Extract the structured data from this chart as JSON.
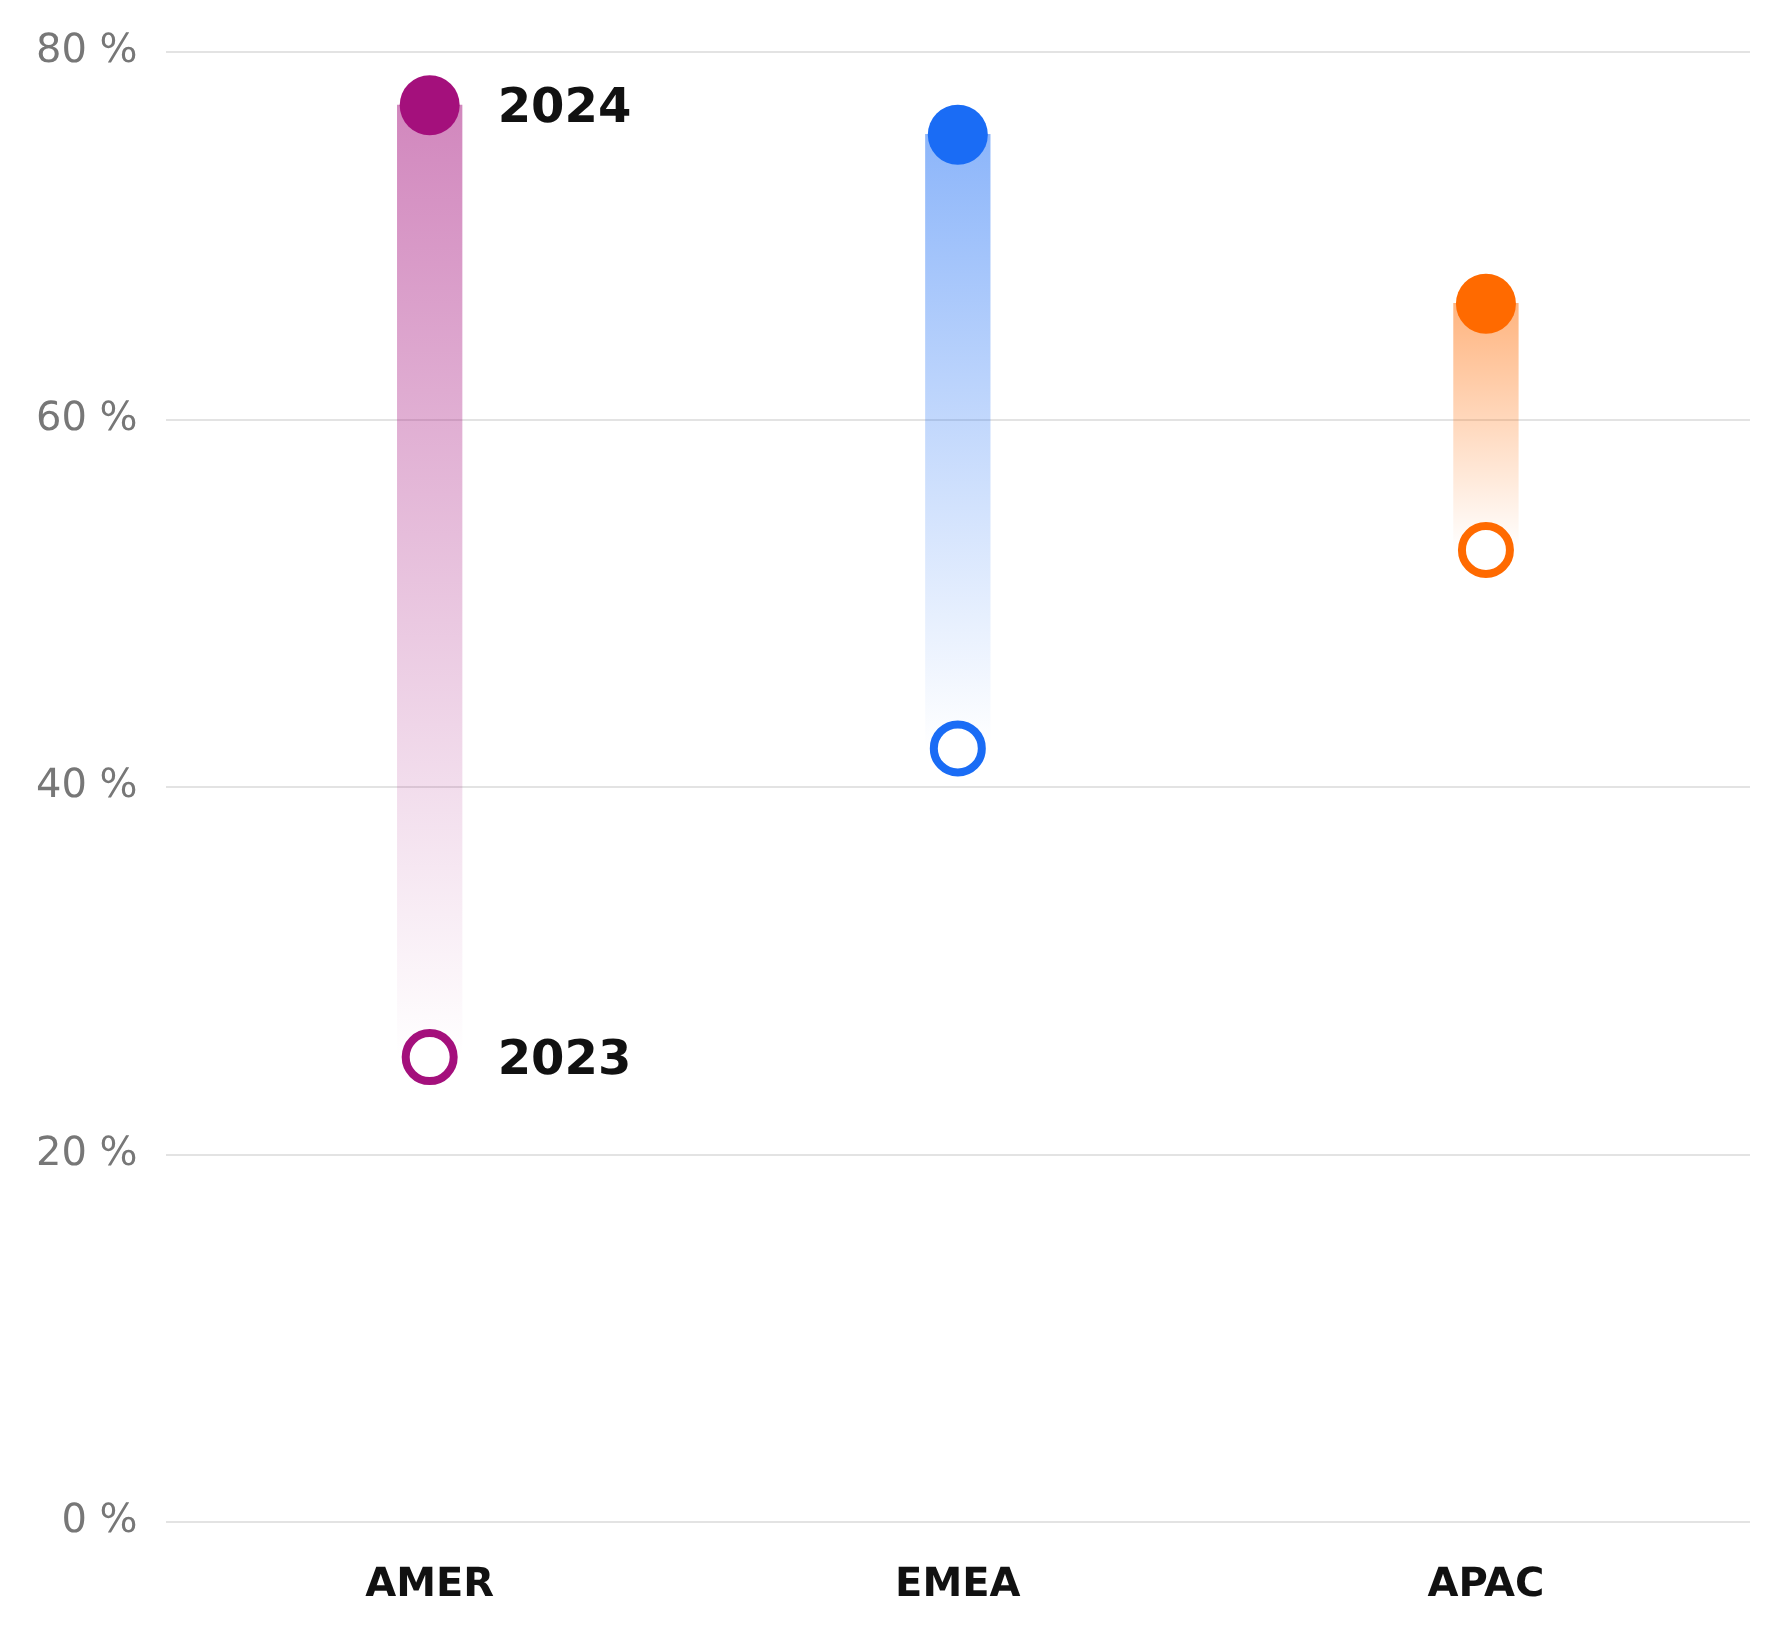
{
  "chart_data": {
    "type": "bar",
    "categories": [
      "AMER",
      "EMEA",
      "APAC"
    ],
    "series": [
      {
        "colors": [
          "#a4107c",
          "#1a6cf5",
          "#ff6a00"
        ],
        "base": [
          25.3,
          42.1,
          52.9
        ],
        "values": [
          51.8,
          33.4,
          13.4
        ]
      },
      {
        "name": "2023",
        "type": "scatter",
        "colors": [
          "#a4107c",
          "#1a6cf5",
          "#ff6a00"
        ],
        "values": [
          25.3,
          42.1,
          52.9
        ]
      },
      {
        "name": "2024",
        "type": "scatter",
        "colors": [
          "#a4107c",
          "#1a6cf5",
          "#ff6a00"
        ],
        "values": [
          77.1,
          75.5,
          66.3
        ]
      }
    ],
    "ylim": [
      0,
      80
    ],
    "yticks": [
      {
        "value": 0,
        "label": "0 %"
      },
      {
        "value": 20,
        "label": "20 %"
      },
      {
        "value": 40,
        "label": "40 %"
      },
      {
        "value": 60,
        "label": "60 %"
      },
      {
        "value": 80,
        "label": "80 %"
      }
    ],
    "grid": "y",
    "legend": false,
    "marker": "circle"
  }
}
